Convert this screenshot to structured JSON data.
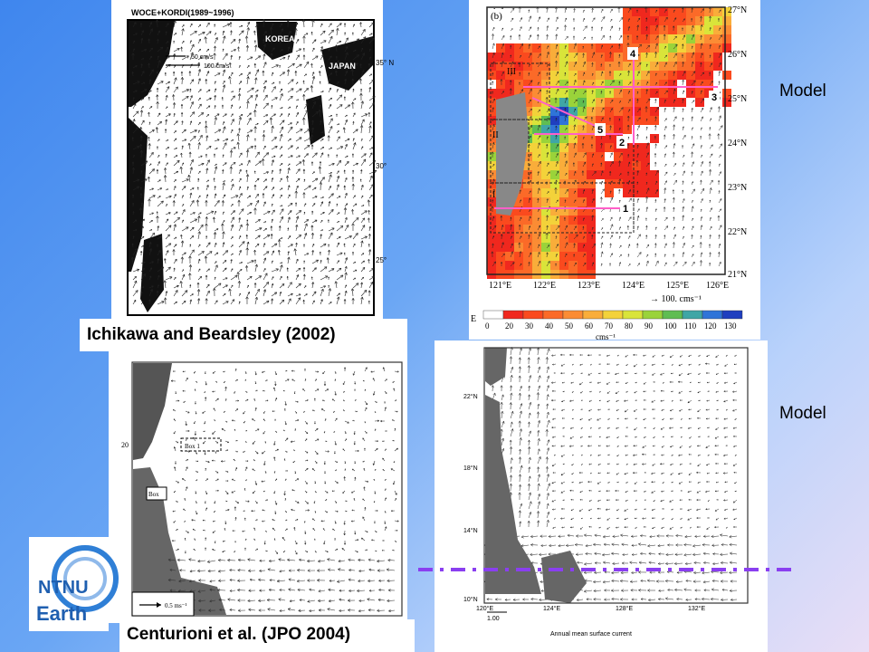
{
  "slide": {
    "captions": {
      "top_left": "Ichikawa and Beardsley (2002)",
      "bottom_left": "Centurioni et al. (JPO 2004)"
    },
    "model_labels": {
      "top": "Model",
      "bottom": "Model"
    },
    "logo": {
      "line1": "NTNU",
      "line2": "Earth",
      "ring_color": "#2f7fd6",
      "text_color": "#1f5fb0"
    },
    "guide_line_color": "#8a3ff0"
  },
  "panel_obs_top": {
    "title": "WOCE+KORDI(1989~1996)",
    "legend_1": "50 cm/s",
    "legend_2": "100 cm/s",
    "korea_label": "KOREA",
    "japan_label": "JAPAN",
    "lat_labels": [
      "35° N",
      "30°",
      "25°"
    ]
  },
  "panel_model_top": {
    "panel_label": "(b)",
    "lat_labels": [
      "27°N",
      "26°N",
      "25°N",
      "24°N",
      "23°N",
      "22°N",
      "21°N"
    ],
    "lon_labels": [
      "121°E",
      "122°E",
      "123°E",
      "124°E",
      "125°E",
      "126°E"
    ],
    "vector_scale": "→ 100.  cms⁻¹",
    "region_labels": [
      "III",
      "II",
      "I"
    ],
    "section_numbers": [
      "4",
      "3",
      "5",
      "2",
      "1"
    ],
    "colorbar_title": "E",
    "colorbar_ticks": [
      "0",
      "20",
      "30",
      "40",
      "50",
      "60",
      "70",
      "80",
      "90",
      "100",
      "110",
      "120",
      "130"
    ],
    "colorbar_unit": "cms⁻¹",
    "colorbar_colors": [
      "#ffffff",
      "#f0281e",
      "#fa4a1e",
      "#fb6a28",
      "#fb8c34",
      "#f9ad3a",
      "#f3d23a",
      "#d9e43a",
      "#9ad33a",
      "#5fbd52",
      "#3fa6a6",
      "#2f74d8",
      "#1f3fbf"
    ]
  },
  "panel_obs_bottom": {
    "lat_label": "20",
    "box_labels": [
      "Box 1",
      "Box"
    ],
    "scale": "0.5 ms⁻¹"
  },
  "panel_model_bottom": {
    "lat_labels": [
      "22°N",
      "18°N",
      "14°N",
      "10°N"
    ],
    "lon_labels": [
      "120°E",
      "124°E",
      "128°E",
      "132°E"
    ],
    "scale": "1.00",
    "footer": "Annual mean surface current"
  }
}
